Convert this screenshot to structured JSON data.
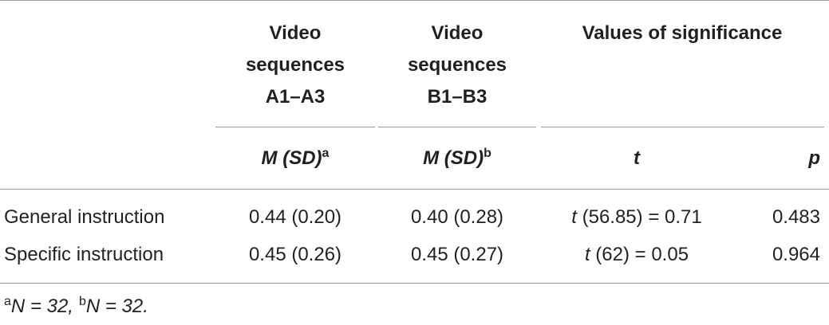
{
  "table": {
    "header": [
      "Video sequences A1–A3",
      "Video sequences B1–B3",
      "Values of significance"
    ],
    "subheader": [
      {
        "text": "M (SD)",
        "sup": "a"
      },
      {
        "text": "M (SD)",
        "sup": "b"
      },
      {
        "text": "t"
      },
      {
        "text": "p"
      }
    ],
    "rows": [
      {
        "label": "General instruction",
        "cells": [
          "0.44 (0.20)",
          "0.40 (0.28)",
          {
            "italic": "t",
            "rest": " (56.85) = 0.71"
          },
          "0.483"
        ]
      },
      {
        "label": "Specific instruction",
        "cells": [
          "0.45 (0.26)",
          "0.45 (0.27)",
          {
            "italic": "t",
            "rest": " (62) = 0.05"
          },
          "0.964"
        ]
      }
    ]
  },
  "footnote": [
    {
      "sup": "a",
      "text": "N = 32,"
    },
    {
      "sup": "b",
      "text": "N = 32."
    }
  ]
}
